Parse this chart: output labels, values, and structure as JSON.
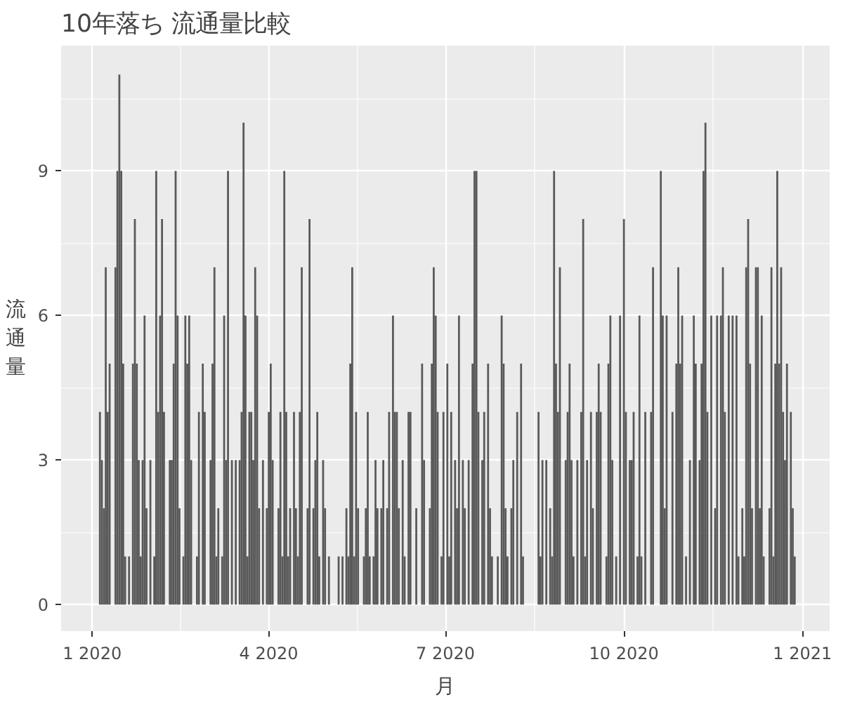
{
  "chart_data": {
    "type": "bar",
    "title": "10年落ち 流通量比較",
    "xlabel": "月",
    "ylabel": "流通量",
    "color": "#595959",
    "grid": true,
    "xlim": [
      "2019-12-16",
      "2021-01-15"
    ],
    "ylim": [
      -0.55,
      11.6
    ],
    "yticks": [
      0,
      3,
      6,
      9
    ],
    "xticks": [
      {
        "value": "2020-01-01",
        "label": "1 2020"
      },
      {
        "value": "2020-04-01",
        "label": "4 2020"
      },
      {
        "value": "2020-07-01",
        "label": "7 2020"
      },
      {
        "value": "2020-10-01",
        "label": "10 2020"
      },
      {
        "value": "2021-01-01",
        "label": "1 2021"
      }
    ],
    "x": [
      "2020-01-05",
      "2020-01-06",
      "2020-01-07",
      "2020-01-08",
      "2020-01-09",
      "2020-01-10",
      "2020-01-13",
      "2020-01-14",
      "2020-01-15",
      "2020-01-16",
      "2020-01-17",
      "2020-01-18",
      "2020-01-20",
      "2020-01-22",
      "2020-01-23",
      "2020-01-24",
      "2020-01-25",
      "2020-01-26",
      "2020-01-27",
      "2020-01-28",
      "2020-01-29",
      "2020-01-31",
      "2020-02-02",
      "2020-02-03",
      "2020-02-04",
      "2020-02-05",
      "2020-02-06",
      "2020-02-07",
      "2020-02-10",
      "2020-02-11",
      "2020-02-12",
      "2020-02-13",
      "2020-02-14",
      "2020-02-15",
      "2020-02-17",
      "2020-02-18",
      "2020-02-19",
      "2020-02-20",
      "2020-02-21",
      "2020-02-24",
      "2020-02-25",
      "2020-02-27",
      "2020-02-28",
      "2020-03-02",
      "2020-03-03",
      "2020-03-04",
      "2020-03-05",
      "2020-03-06",
      "2020-03-08",
      "2020-03-09",
      "2020-03-10",
      "2020-03-11",
      "2020-03-13",
      "2020-03-15",
      "2020-03-17",
      "2020-03-18",
      "2020-03-19",
      "2020-03-20",
      "2020-03-21",
      "2020-03-22",
      "2020-03-23",
      "2020-03-24",
      "2020-03-25",
      "2020-03-26",
      "2020-03-27",
      "2020-03-29",
      "2020-03-31",
      "2020-04-01",
      "2020-04-02",
      "2020-04-03",
      "2020-04-06",
      "2020-04-07",
      "2020-04-08",
      "2020-04-09",
      "2020-04-10",
      "2020-04-11",
      "2020-04-12",
      "2020-04-14",
      "2020-04-15",
      "2020-04-16",
      "2020-04-17",
      "2020-04-18",
      "2020-04-21",
      "2020-04-22",
      "2020-04-24",
      "2020-04-25",
      "2020-04-26",
      "2020-04-27",
      "2020-04-29",
      "2020-04-30",
      "2020-05-02",
      "2020-05-07",
      "2020-05-09",
      "2020-05-11",
      "2020-05-12",
      "2020-05-13",
      "2020-05-14",
      "2020-05-15",
      "2020-05-16",
      "2020-05-17",
      "2020-05-20",
      "2020-05-21",
      "2020-05-22",
      "2020-05-23",
      "2020-05-25",
      "2020-05-26",
      "2020-05-27",
      "2020-05-29",
      "2020-05-30",
      "2020-06-01",
      "2020-06-02",
      "2020-06-04",
      "2020-06-05",
      "2020-06-06",
      "2020-06-07",
      "2020-06-09",
      "2020-06-10",
      "2020-06-12",
      "2020-06-13",
      "2020-06-16",
      "2020-06-19",
      "2020-06-20",
      "2020-06-23",
      "2020-06-24",
      "2020-06-25",
      "2020-06-26",
      "2020-06-27",
      "2020-06-29",
      "2020-06-30",
      "2020-07-02",
      "2020-07-03",
      "2020-07-04",
      "2020-07-06",
      "2020-07-07",
      "2020-07-08",
      "2020-07-10",
      "2020-07-11",
      "2020-07-13",
      "2020-07-15",
      "2020-07-16",
      "2020-07-17",
      "2020-07-18",
      "2020-07-20",
      "2020-07-21",
      "2020-07-23",
      "2020-07-24",
      "2020-07-25",
      "2020-07-28",
      "2020-07-30",
      "2020-07-31",
      "2020-08-01",
      "2020-08-02",
      "2020-08-04",
      "2020-08-05",
      "2020-08-07",
      "2020-08-09",
      "2020-08-10",
      "2020-08-18",
      "2020-08-19",
      "2020-08-20",
      "2020-08-22",
      "2020-08-24",
      "2020-08-25",
      "2020-08-26",
      "2020-08-27",
      "2020-08-28",
      "2020-08-29",
      "2020-09-01",
      "2020-09-02",
      "2020-09-03",
      "2020-09-04",
      "2020-09-05",
      "2020-09-07",
      "2020-09-09",
      "2020-09-10",
      "2020-09-11",
      "2020-09-12",
      "2020-09-14",
      "2020-09-15",
      "2020-09-17",
      "2020-09-18",
      "2020-09-19",
      "2020-09-22",
      "2020-09-23",
      "2020-09-24",
      "2020-09-25",
      "2020-09-27",
      "2020-09-29",
      "2020-10-01",
      "2020-10-02",
      "2020-10-04",
      "2020-10-05",
      "2020-10-06",
      "2020-10-08",
      "2020-10-09",
      "2020-10-10",
      "2020-10-12",
      "2020-10-15",
      "2020-10-16",
      "2020-10-20",
      "2020-10-21",
      "2020-10-22",
      "2020-10-23",
      "2020-10-26",
      "2020-10-28",
      "2020-10-29",
      "2020-10-30",
      "2020-10-31",
      "2020-11-02",
      "2020-11-04",
      "2020-11-06",
      "2020-11-07",
      "2020-11-09",
      "2020-11-10",
      "2020-11-11",
      "2020-11-12",
      "2020-11-13",
      "2020-11-15",
      "2020-11-17",
      "2020-11-18",
      "2020-11-20",
      "2020-11-21",
      "2020-11-22",
      "2020-11-24",
      "2020-11-26",
      "2020-11-28",
      "2020-11-29",
      "2020-12-01",
      "2020-12-02",
      "2020-12-03",
      "2020-12-04",
      "2020-12-05",
      "2020-12-06",
      "2020-12-08",
      "2020-12-09",
      "2020-12-10",
      "2020-12-11",
      "2020-12-12",
      "2020-12-15",
      "2020-12-16",
      "2020-12-17",
      "2020-12-18",
      "2020-12-19",
      "2020-12-20",
      "2020-12-21",
      "2020-12-22",
      "2020-12-23",
      "2020-12-24",
      "2020-12-26",
      "2020-12-27",
      "2020-12-28"
    ],
    "values": [
      4,
      3,
      2,
      7,
      4,
      5,
      7,
      9,
      11,
      9,
      5,
      1,
      1,
      5,
      8,
      5,
      3,
      1,
      3,
      6,
      2,
      3,
      1,
      9,
      4,
      6,
      8,
      4,
      3,
      3,
      5,
      9,
      6,
      2,
      1,
      6,
      5,
      6,
      3,
      1,
      4,
      5,
      4,
      3,
      5,
      7,
      1,
      2,
      1,
      6,
      3,
      9,
      3,
      3,
      3,
      4,
      10,
      6,
      1,
      4,
      4,
      3,
      7,
      6,
      2,
      3,
      2,
      4,
      5,
      3,
      2,
      4,
      1,
      9,
      4,
      1,
      2,
      4,
      2,
      1,
      4,
      7,
      2,
      8,
      2,
      3,
      4,
      1,
      3,
      2,
      1,
      1,
      1,
      2,
      1,
      5,
      7,
      1,
      4,
      2,
      1,
      2,
      4,
      1,
      1,
      3,
      2,
      2,
      3,
      2,
      4,
      6,
      4,
      4,
      2,
      3,
      1,
      4,
      4,
      2,
      5,
      3,
      2,
      5,
      7,
      6,
      4,
      1,
      4,
      5,
      1,
      4,
      3,
      2,
      6,
      3,
      2,
      3,
      5,
      9,
      9,
      4,
      3,
      4,
      5,
      2,
      1,
      1,
      6,
      5,
      2,
      1,
      2,
      3,
      4,
      5,
      1,
      4,
      1,
      3,
      3,
      2,
      1,
      9,
      5,
      4,
      7,
      3,
      4,
      5,
      3,
      1,
      3,
      4,
      8,
      1,
      3,
      4,
      2,
      4,
      5,
      4,
      1,
      5,
      6,
      3,
      1,
      6,
      8,
      4,
      3,
      3,
      4,
      1,
      6,
      1,
      4,
      4,
      7,
      9,
      6,
      2,
      6,
      4,
      5,
      7,
      5,
      6,
      1,
      3,
      6,
      5,
      3,
      5,
      9,
      10,
      4,
      6,
      2,
      6,
      6,
      7,
      4,
      6,
      6,
      6,
      1,
      2,
      1,
      7,
      8,
      5,
      2,
      7,
      7,
      2,
      6,
      1,
      2,
      7,
      1,
      5,
      9,
      5,
      7,
      4,
      3,
      5,
      4,
      2,
      1
    ]
  }
}
